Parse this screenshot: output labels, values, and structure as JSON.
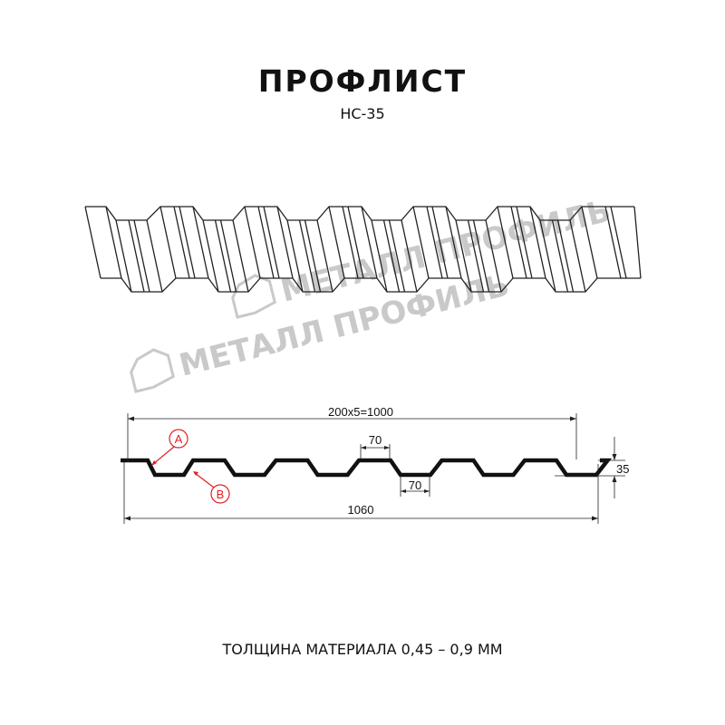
{
  "header": {
    "title": "ПРОФЛИСТ",
    "subtitle": "НС-35"
  },
  "watermark": {
    "logo_text": "МЕТАЛЛ ПРОФИЛЬ"
  },
  "drawing": {
    "dim_pitch": "200x5=1000",
    "dim_total": "1060",
    "dim_top_flat": "70",
    "dim_bottom_flat": "70",
    "dim_height": "35",
    "callout_a": "A",
    "callout_b": "B"
  },
  "footer": {
    "thickness": "ТОЛЩИНА МАТЕРИАЛА 0,45 – 0,9 ММ"
  },
  "colors": {
    "profile": "#111111",
    "callout": "#e02020",
    "watermark": "#c9c9c9"
  }
}
